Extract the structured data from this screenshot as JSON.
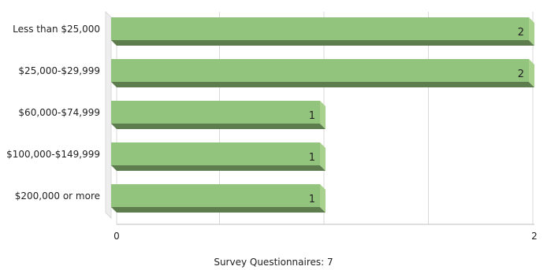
{
  "chart_data": {
    "type": "bar",
    "orientation": "horizontal",
    "categories": [
      "Less than $25,000",
      "$25,000-$29,999",
      "$60,000-$74,999",
      "$100,000-$149,999",
      "$200,000 or more"
    ],
    "values": [
      2,
      2,
      1,
      1,
      1
    ],
    "data_labels": [
      "2",
      "2",
      "1",
      "1",
      "1"
    ],
    "xlim": [
      0,
      2
    ],
    "x_ticks": [
      "0",
      "2"
    ],
    "grid": "vertical",
    "legend": "none",
    "bar_color": "#93c47d",
    "bar_side_color": "#5e7d4e",
    "footer": "Survey Questionnaires: 7"
  }
}
